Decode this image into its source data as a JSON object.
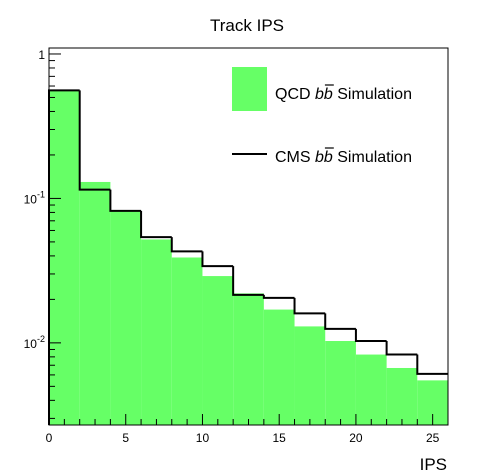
{
  "chart_data": {
    "type": "bar",
    "title": "Track IPS",
    "xlabel": "IPS",
    "ylabel": "",
    "xlim": [
      0,
      26
    ],
    "ylim": [
      0.0027,
      1.1
    ],
    "yscale": "log",
    "grid": false,
    "legend_position": "top-right",
    "bin_edges": [
      0,
      2,
      4,
      6,
      8,
      10,
      12,
      14,
      16,
      18,
      20,
      22,
      24,
      26
    ],
    "x_ticks": [
      0,
      5,
      10,
      15,
      20,
      25
    ],
    "x_tick_labels": [
      "0",
      "5",
      "10",
      "15",
      "20",
      "25"
    ],
    "y_ticks": [
      1,
      0.1,
      0.01
    ],
    "y_tick_labels": [
      {
        "base": "1",
        "exp": ""
      },
      {
        "base": "10",
        "exp": "-1"
      },
      {
        "base": "10",
        "exp": "-2"
      }
    ],
    "series": [
      {
        "name": "QCD b b̄ Simulation",
        "legend_label": {
          "prefix": "QCD ",
          "italic": "b",
          "italic_bar": "b",
          "suffix": " Simulation"
        },
        "style": "filled",
        "color": "#66ff66",
        "values": [
          0.56,
          0.13,
          0.083,
          0.052,
          0.039,
          0.029,
          0.022,
          0.017,
          0.013,
          0.0103,
          0.0083,
          0.0067,
          0.0055
        ]
      },
      {
        "name": "CMS b b̄ Simulation",
        "legend_label": {
          "prefix": "CMS ",
          "italic": "b",
          "italic_bar": "b",
          "suffix": " Simulation"
        },
        "style": "line",
        "color": "#000000",
        "values": [
          0.56,
          0.115,
          0.082,
          0.054,
          0.043,
          0.034,
          0.0215,
          0.0205,
          0.016,
          0.0125,
          0.0103,
          0.0083,
          0.0061
        ]
      }
    ]
  }
}
